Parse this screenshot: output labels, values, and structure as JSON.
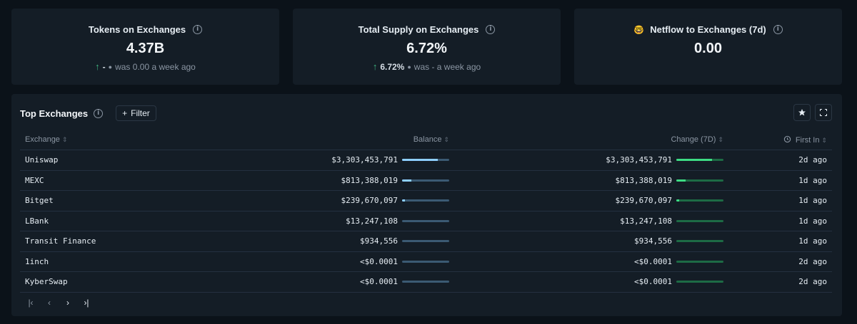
{
  "cards": [
    {
      "title": "Tokens on Exchanges",
      "value": "4.37B",
      "change": "-",
      "sub": "was 0.00 a week ago"
    },
    {
      "title": "Total Supply on Exchanges",
      "value": "6.72%",
      "change": "6.72%",
      "sub": "was - a week ago"
    },
    {
      "title": "Netflow to Exchanges (7d)",
      "emoji": "🤓",
      "value": "0.00"
    }
  ],
  "panel": {
    "title": "Top Exchanges",
    "filter_label": "Filter",
    "columns": {
      "exchange": "Exchange",
      "balance": "Balance",
      "change": "Change (7D)",
      "first_in": "First In"
    },
    "rows": [
      {
        "exchange": "Uniswap",
        "balance": "$3,303,453,791",
        "balance_frac": 0.75,
        "change": "$3,303,453,791",
        "change_frac": 0.75,
        "first_in": "2d ago"
      },
      {
        "exchange": "MEXC",
        "balance": "$813,388,019",
        "balance_frac": 0.19,
        "change": "$813,388,019",
        "change_frac": 0.19,
        "first_in": "1d ago"
      },
      {
        "exchange": "Bitget",
        "balance": "$239,670,097",
        "balance_frac": 0.06,
        "change": "$239,670,097",
        "change_frac": 0.06,
        "first_in": "1d ago"
      },
      {
        "exchange": "LBank",
        "balance": "$13,247,108",
        "balance_frac": 0.0,
        "change": "$13,247,108",
        "change_frac": 0.0,
        "first_in": "1d ago"
      },
      {
        "exchange": "Transit Finance",
        "balance": "$934,556",
        "balance_frac": 0.0,
        "change": "$934,556",
        "change_frac": 0.0,
        "first_in": "1d ago"
      },
      {
        "exchange": "1inch",
        "balance": "<$0.0001",
        "balance_frac": 0.0,
        "change": "<$0.0001",
        "change_frac": 0.0,
        "first_in": "2d ago"
      },
      {
        "exchange": "KyberSwap",
        "balance": "<$0.0001",
        "balance_frac": 0.0,
        "change": "<$0.0001",
        "change_frac": 0.0,
        "first_in": "2d ago"
      }
    ]
  },
  "colors": {
    "accent_up": "#3fb37f",
    "balance_bar": "#8ecfff",
    "change_bar": "#3ddc84"
  }
}
